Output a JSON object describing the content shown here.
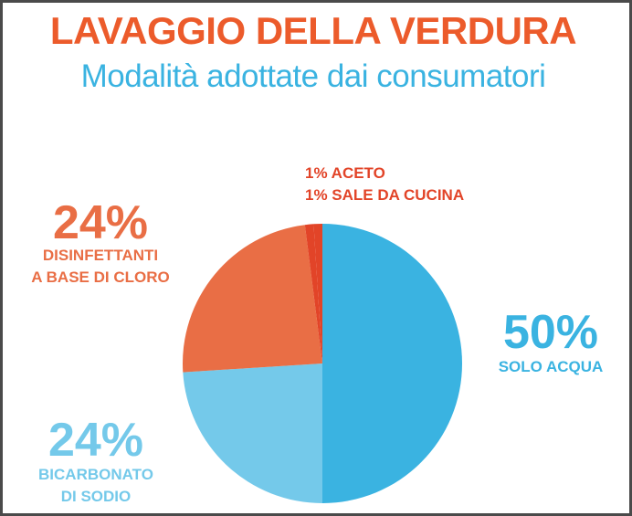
{
  "header": {
    "title": "LAVAGGIO DELLA VERDURA",
    "subtitle": "Modalità adottate dai consumatori"
  },
  "chart_data": {
    "type": "pie",
    "title": "LAVAGGIO DELLA VERDURA",
    "subtitle": "Modalità adottate dai consumatori",
    "slices": [
      {
        "name": "SOLO ACQUA",
        "value": 50,
        "pct_label": "50%",
        "label_lines": [
          "SOLO ACQUA"
        ],
        "color": "#3AB3E1"
      },
      {
        "name": "BICARBONATO DI SODIO",
        "value": 24,
        "pct_label": "24%",
        "label_lines": [
          "BICARBONATO",
          "DI SODIO"
        ],
        "color": "#74C9EA"
      },
      {
        "name": "DISINFETTANTI A BASE DI CLORO",
        "value": 24,
        "pct_label": "24%",
        "label_lines": [
          "DISINFETTANTI",
          "A BASE DI CLORO"
        ],
        "color": "#E96E45"
      },
      {
        "name": "ACETO",
        "value": 1,
        "label": "1% ACETO",
        "color": "#E24428"
      },
      {
        "name": "SALE DA CUCINA",
        "value": 1,
        "label": "1% SALE DA CUCINA",
        "color": "#E24428"
      }
    ]
  }
}
